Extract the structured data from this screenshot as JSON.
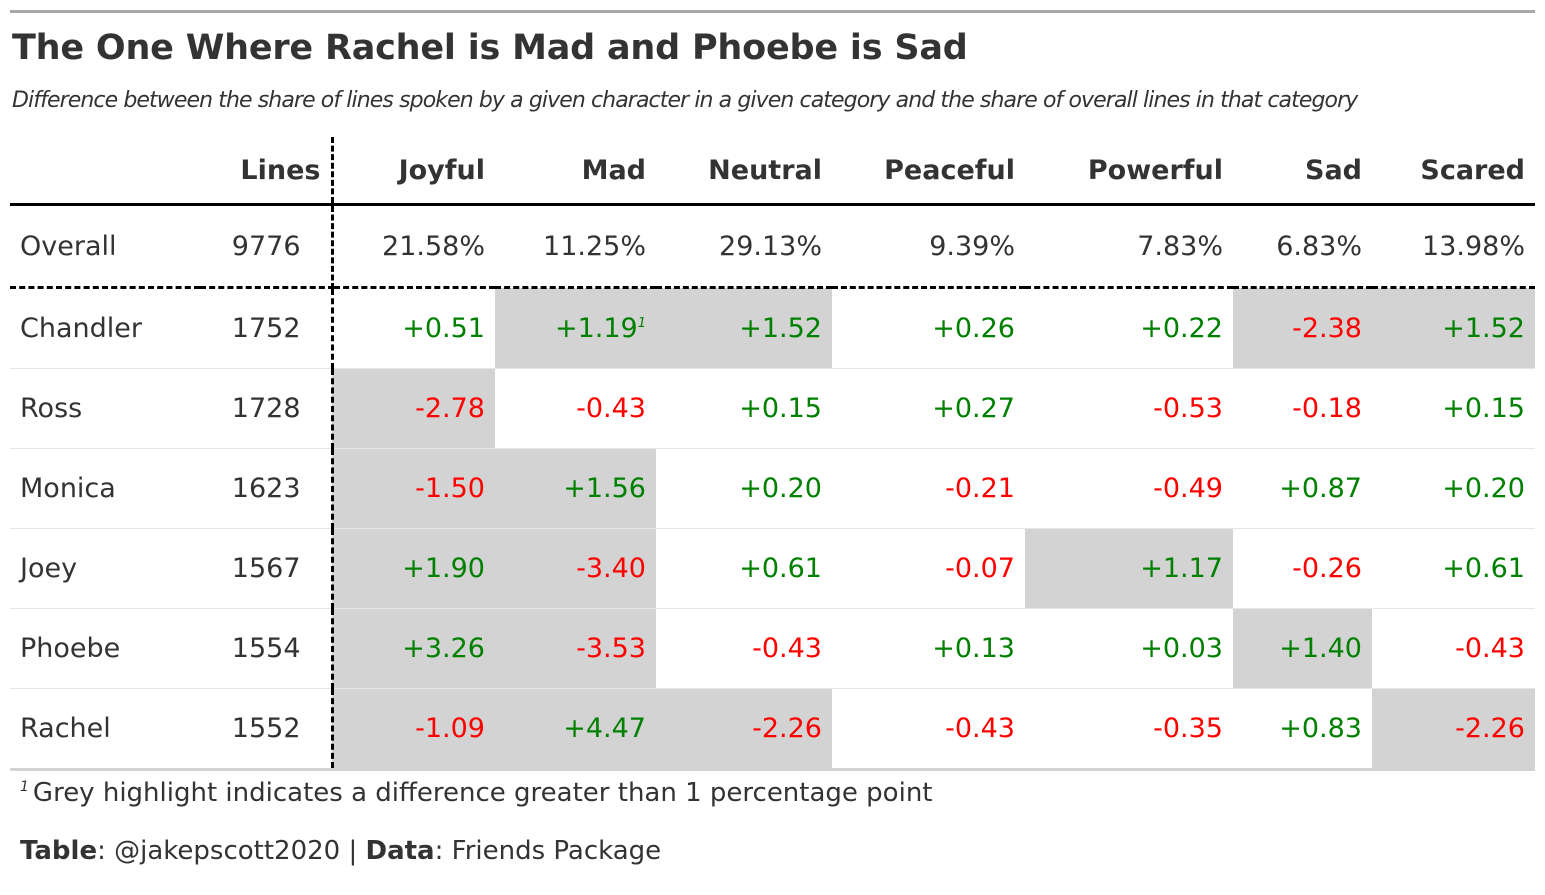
{
  "title": "The One Where Rachel is Mad and Phoebe is Sad",
  "subtitle": "Difference between the share of lines spoken by a given character in a given category and the share of overall lines in that category",
  "columns": {
    "lines": "Lines",
    "joyful": "Joyful",
    "mad": "Mad",
    "neutral": "Neutral",
    "peaceful": "Peaceful",
    "powerful": "Powerful",
    "sad": "Sad",
    "scared": "Scared"
  },
  "overall": {
    "name": "Overall",
    "lines": "9776",
    "joyful": "21.58%",
    "mad": "11.25%",
    "neutral": "29.13%",
    "peaceful": "9.39%",
    "powerful": "7.83%",
    "sad": "6.83%",
    "scared": "13.98%"
  },
  "rows": [
    {
      "name": "Chandler",
      "lines": "1752",
      "joyful": "+0.51",
      "mad": "+1.19",
      "neutral": "+1.52",
      "peaceful": "+0.26",
      "powerful": "+0.22",
      "sad": "-2.38",
      "scared": "+1.52",
      "highlight": [
        "mad",
        "neutral",
        "sad",
        "scared"
      ]
    },
    {
      "name": "Ross",
      "lines": "1728",
      "joyful": "-2.78",
      "mad": "-0.43",
      "neutral": "+0.15",
      "peaceful": "+0.27",
      "powerful": "-0.53",
      "sad": "-0.18",
      "scared": "+0.15",
      "highlight": [
        "joyful"
      ]
    },
    {
      "name": "Monica",
      "lines": "1623",
      "joyful": "-1.50",
      "mad": "+1.56",
      "neutral": "+0.20",
      "peaceful": "-0.21",
      "powerful": "-0.49",
      "sad": "+0.87",
      "scared": "+0.20",
      "highlight": [
        "joyful",
        "mad"
      ]
    },
    {
      "name": "Joey",
      "lines": "1567",
      "joyful": "+1.90",
      "mad": "-3.40",
      "neutral": "+0.61",
      "peaceful": "-0.07",
      "powerful": "+1.17",
      "sad": "-0.26",
      "scared": "+0.61",
      "highlight": [
        "joyful",
        "mad",
        "powerful"
      ]
    },
    {
      "name": "Phoebe",
      "lines": "1554",
      "joyful": "+3.26",
      "mad": "-3.53",
      "neutral": "-0.43",
      "peaceful": "+0.13",
      "powerful": "+0.03",
      "sad": "+1.40",
      "scared": "-0.43",
      "highlight": [
        "joyful",
        "mad",
        "sad"
      ]
    },
    {
      "name": "Rachel",
      "lines": "1552",
      "joyful": "-1.09",
      "mad": "+4.47",
      "neutral": "-2.26",
      "peaceful": "-0.43",
      "powerful": "-0.35",
      "sad": "+0.83",
      "scared": "-2.26",
      "highlight": [
        "joyful",
        "mad",
        "neutral",
        "scared"
      ]
    }
  ],
  "footnote_mark": "1",
  "footnote": "Grey highlight indicates a difference greater than 1 percentage point",
  "source": {
    "table_label": "Table",
    "table_value": ": @jakepscott2020 | ",
    "data_label": "Data",
    "data_value": ": Friends Package"
  },
  "colors": {
    "positive": "#008000",
    "negative": "#ff0000",
    "highlight": "#d3d3d3",
    "text": "#333333"
  }
}
